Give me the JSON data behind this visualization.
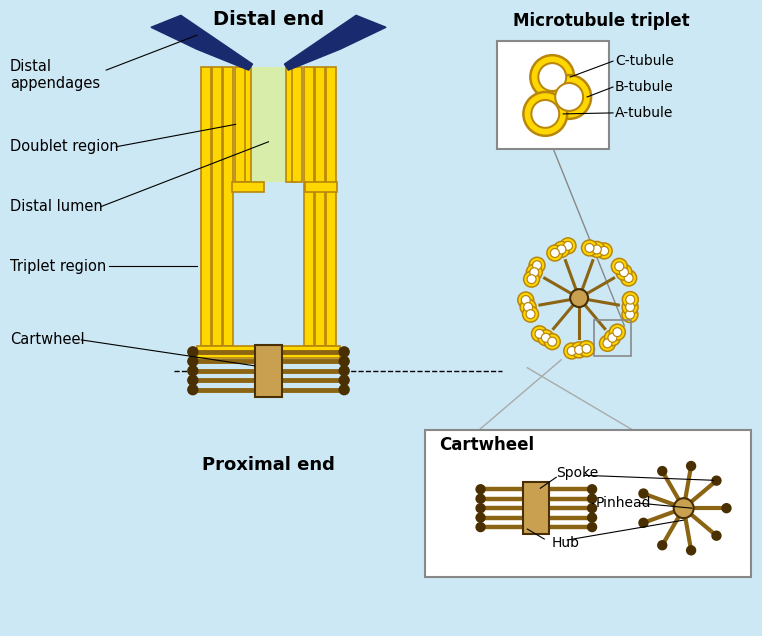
{
  "bg_color": "#cce8f4",
  "yellow": "#FFD700",
  "yellow_dark": "#B8860B",
  "dark_blue": "#1a2a6e",
  "brown": "#8B6513",
  "brown_dark": "#4a3000",
  "brown_light": "#C8A050",
  "green_light": "#d9edaa",
  "white": "#ffffff",
  "gray": "#888888",
  "title_distal": "Distal end",
  "title_proximal": "Proximal end",
  "mt_title": "Microtubule triplet",
  "cw_title": "Cartwheel",
  "lbl_distal_app": "Distal\nappendages",
  "lbl_doublet": "Doublet region",
  "lbl_lumen": "Distal lumen",
  "lbl_triplet": "Triplet region",
  "lbl_cartwheel": "Cartwheel",
  "lbl_c": "C-tubule",
  "lbl_b": "B-tubule",
  "lbl_a": "A-tubule",
  "lbl_spoke": "Spoke",
  "lbl_pinhead": "Pinhead",
  "lbl_hub": "Hub"
}
